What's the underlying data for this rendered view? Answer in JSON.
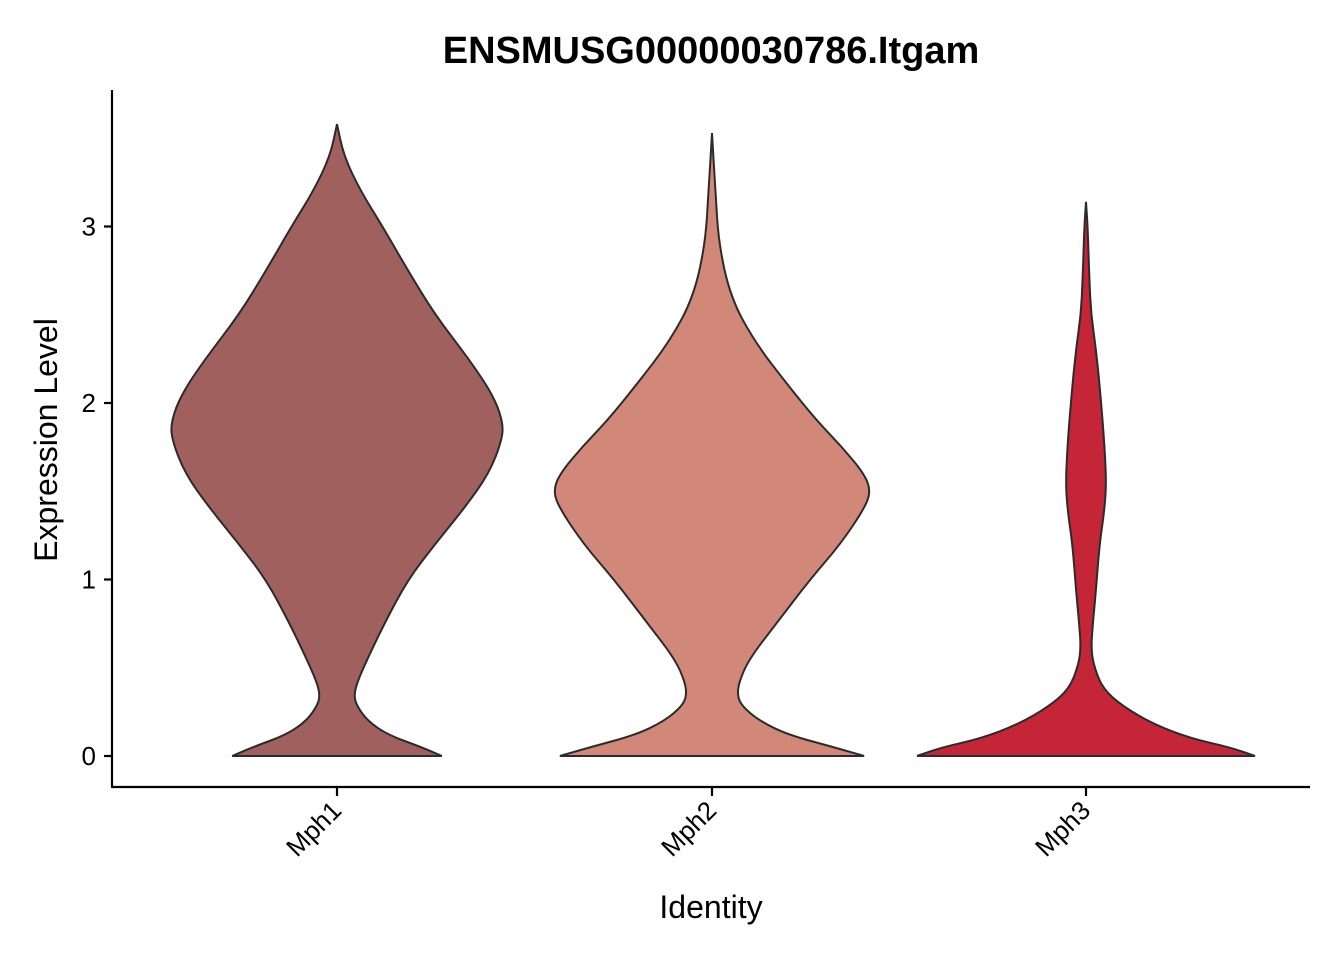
{
  "chart_data": {
    "type": "violin",
    "title": "ENSMUSG00000030786.Itgam",
    "xlabel": "Identity",
    "ylabel": "Expression Level",
    "categories": [
      "Mph1",
      "Mph2",
      "Mph3"
    ],
    "yticks": [
      "0",
      "1",
      "2",
      "3"
    ],
    "ylim": [
      -0.17,
      3.77
    ],
    "grid": false,
    "legend": "none",
    "colors": [
      "#A0605E",
      "#D28878",
      "#C42537"
    ],
    "series": [
      {
        "category": "Mph1",
        "max": 3.58,
        "profile": [
          [
            0,
            0.62
          ],
          [
            0.05,
            0.5
          ],
          [
            0.12,
            0.3
          ],
          [
            0.2,
            0.18
          ],
          [
            0.28,
            0.12
          ],
          [
            0.34,
            0.1
          ],
          [
            0.42,
            0.12
          ],
          [
            0.55,
            0.18
          ],
          [
            0.75,
            0.28
          ],
          [
            1.0,
            0.42
          ],
          [
            1.2,
            0.58
          ],
          [
            1.4,
            0.75
          ],
          [
            1.6,
            0.9
          ],
          [
            1.8,
            0.98
          ],
          [
            1.9,
            0.98
          ],
          [
            2.05,
            0.92
          ],
          [
            2.25,
            0.78
          ],
          [
            2.5,
            0.58
          ],
          [
            2.75,
            0.42
          ],
          [
            3.0,
            0.27
          ],
          [
            3.2,
            0.14
          ],
          [
            3.4,
            0.04
          ],
          [
            3.58,
            0.0
          ]
        ]
      },
      {
        "category": "Mph2",
        "max": 3.53,
        "profile": [
          [
            0,
            0.9
          ],
          [
            0.05,
            0.72
          ],
          [
            0.12,
            0.45
          ],
          [
            0.2,
            0.28
          ],
          [
            0.28,
            0.18
          ],
          [
            0.34,
            0.15
          ],
          [
            0.42,
            0.16
          ],
          [
            0.55,
            0.22
          ],
          [
            0.75,
            0.38
          ],
          [
            1.0,
            0.58
          ],
          [
            1.2,
            0.76
          ],
          [
            1.4,
            0.9
          ],
          [
            1.5,
            0.94
          ],
          [
            1.6,
            0.9
          ],
          [
            1.75,
            0.77
          ],
          [
            1.9,
            0.62
          ],
          [
            2.1,
            0.45
          ],
          [
            2.35,
            0.25
          ],
          [
            2.6,
            0.11
          ],
          [
            2.9,
            0.04
          ],
          [
            3.2,
            0.02
          ],
          [
            3.53,
            0.0
          ]
        ]
      },
      {
        "category": "Mph3",
        "max": 3.14,
        "profile": [
          [
            0,
            1.0
          ],
          [
            0.05,
            0.85
          ],
          [
            0.1,
            0.62
          ],
          [
            0.18,
            0.4
          ],
          [
            0.28,
            0.22
          ],
          [
            0.38,
            0.1
          ],
          [
            0.5,
            0.05
          ],
          [
            0.6,
            0.03
          ],
          [
            0.75,
            0.04
          ],
          [
            0.95,
            0.06
          ],
          [
            1.2,
            0.08
          ],
          [
            1.4,
            0.11
          ],
          [
            1.55,
            0.12
          ],
          [
            1.75,
            0.11
          ],
          [
            2.0,
            0.09
          ],
          [
            2.3,
            0.06
          ],
          [
            2.5,
            0.03
          ],
          [
            2.7,
            0.02
          ],
          [
            3.0,
            0.01
          ],
          [
            3.14,
            0.0
          ]
        ]
      }
    ]
  }
}
